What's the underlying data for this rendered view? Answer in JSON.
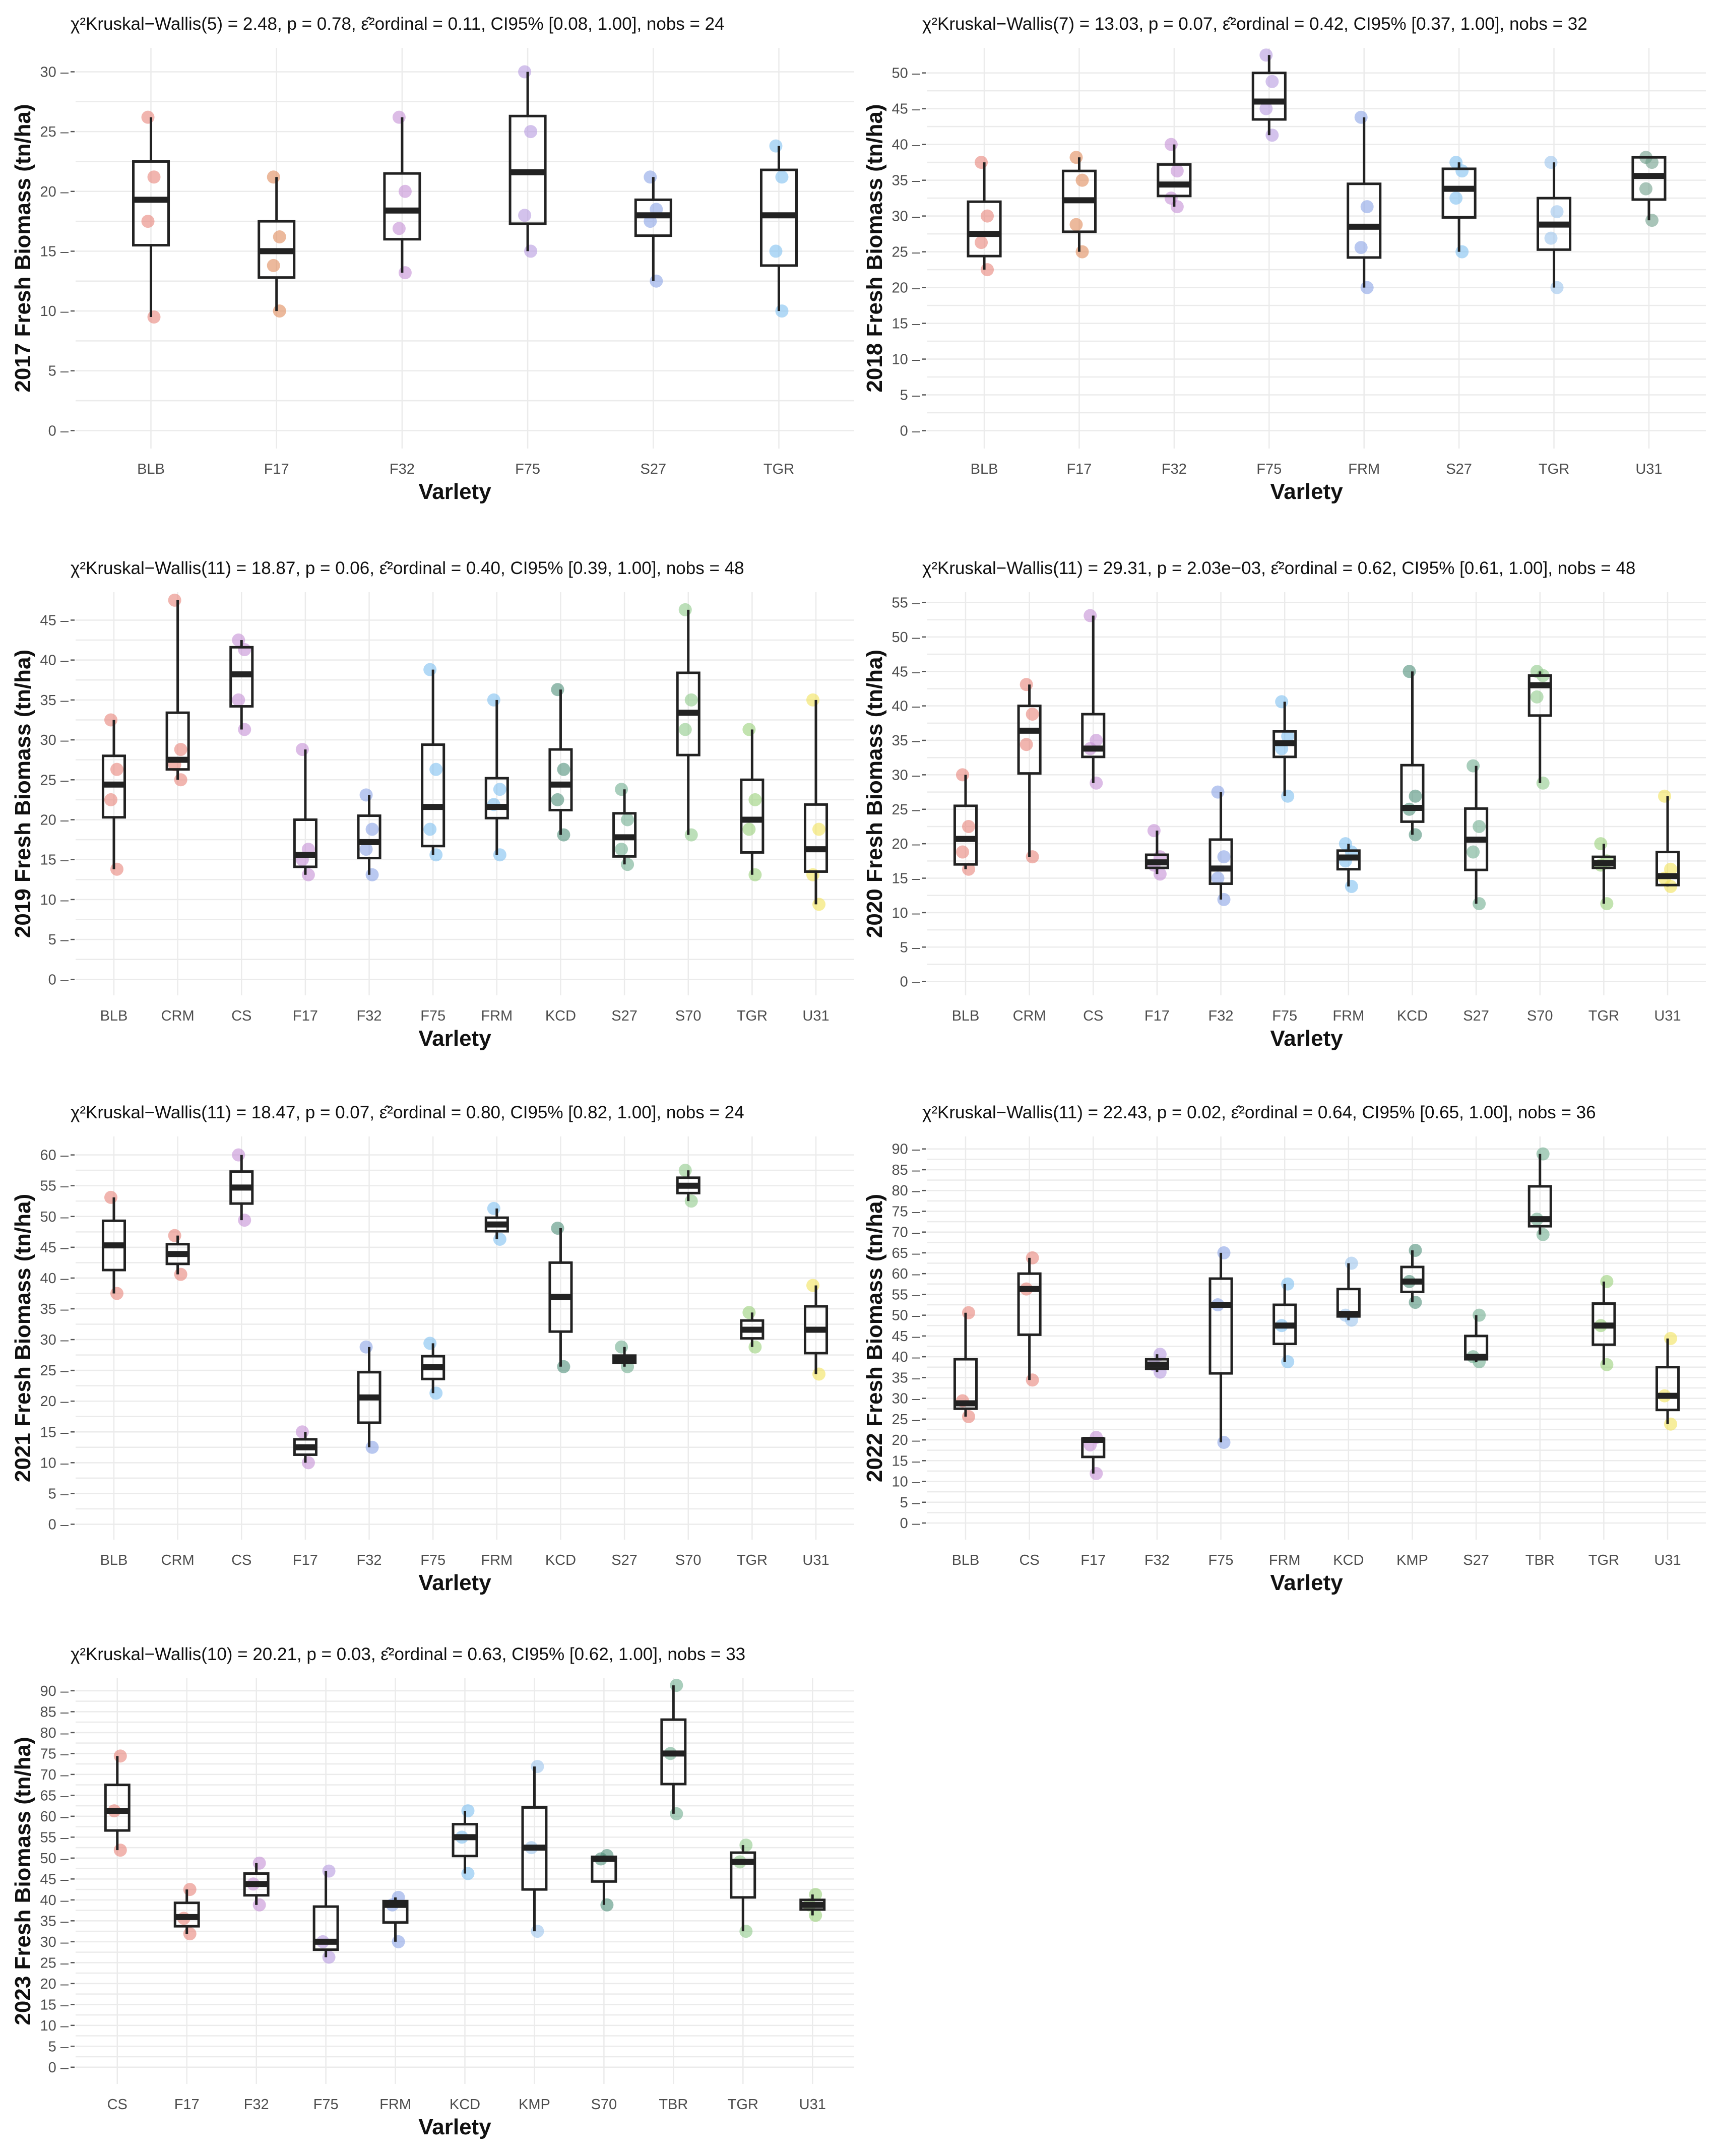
{
  "y_axis_label_suffix": "Fresh Biomass (tn/ha)",
  "x_axis_label": "Varlety",
  "colors": {
    "BLB": "#e8837a",
    "CRM": "#e8837a",
    "CS": "#c48fd6",
    "F17": "#e8837a",
    "F32": "#c48fd6",
    "F75": "#b59ae0",
    "FRM": "#9cc4ec",
    "KCD": "#7fb0a0",
    "KMP": "#9cc4ec",
    "S27": "#8aa4e6",
    "S70": "#8fc98a",
    "TBR": "#6fae8f",
    "TGR": "#9ad07a",
    "U31": "#f2e35a"
  },
  "chart_data": [
    {
      "type": "boxplot",
      "year": "2017",
      "stat": "χ²Kruskal−Wallis(5) = 2.48, p = 0.78, ε̂²ordinal = 0.11, CI95% [0.08, 1.00], nobs = 24",
      "ylabel": "2017 Fresh Biomass (tn/ha)",
      "xlabel": "Varlety",
      "ylim": [
        -1.5,
        32
      ],
      "yticks": [
        0,
        5,
        10,
        15,
        20,
        25,
        30
      ],
      "categories": [
        "BLB",
        "F17",
        "F32",
        "F75",
        "S27",
        "TGR"
      ],
      "colors": [
        "#e8837a",
        "#e08a5a",
        "#c48fd6",
        "#b59ae0",
        "#8aa4e6",
        "#7fbff0"
      ],
      "boxes": [
        [
          9.5,
          15.5,
          19.3,
          22.5,
          26.2
        ],
        [
          10,
          12.8,
          15,
          17.5,
          21.2
        ],
        [
          13.2,
          16,
          18.4,
          21.5,
          26.2
        ],
        [
          15,
          17.3,
          21.6,
          26.3,
          30
        ],
        [
          12.5,
          16.3,
          18,
          19.3,
          21.2
        ],
        [
          10,
          13.8,
          18,
          21.8,
          23.8
        ]
      ],
      "points": [
        [
          9.5,
          17.5,
          21.2,
          26.2
        ],
        [
          10,
          13.8,
          16.2,
          21.2
        ],
        [
          13.2,
          16.9,
          20,
          26.2
        ],
        [
          15,
          18,
          25,
          30
        ],
        [
          12.5,
          17.5,
          18.5,
          21.2
        ],
        [
          10,
          15,
          21.2,
          23.8
        ]
      ]
    },
    {
      "type": "boxplot",
      "year": "2018",
      "stat": "χ²Kruskal−Wallis(7) = 13.03, p = 0.07, ε̂²ordinal = 0.42, CI95% [0.37, 1.00], nobs = 32",
      "ylabel": "2018 Fresh Biomass (tn/ha)",
      "xlabel": "Varlety",
      "ylim": [
        -2.5,
        53.5
      ],
      "yticks": [
        0,
        5,
        10,
        15,
        20,
        25,
        30,
        35,
        40,
        45,
        50
      ],
      "categories": [
        "BLB",
        "F17",
        "F32",
        "F75",
        "FRM",
        "S27",
        "TGR",
        "U31"
      ],
      "colors": [
        "#e8837a",
        "#e08a5a",
        "#c48fd6",
        "#b59ae0",
        "#8aa4e6",
        "#7fbff0",
        "#9cc4ec",
        "#6f9e8a"
      ],
      "boxes": [
        [
          22.5,
          24.4,
          27.5,
          32,
          37.5
        ],
        [
          25,
          27.8,
          32.2,
          36.3,
          38.2
        ],
        [
          31.3,
          32.8,
          34.4,
          37.2,
          40
        ],
        [
          41.3,
          43.5,
          46,
          50,
          52.5
        ],
        [
          20,
          24.2,
          28.5,
          34.5,
          43.8
        ],
        [
          25,
          29.8,
          33.8,
          36.6,
          37.5
        ],
        [
          20,
          25.3,
          28.8,
          32.5,
          37.5
        ],
        [
          29.4,
          32.3,
          35.6,
          38.2,
          38.2
        ]
      ],
      "points": [
        [
          22.5,
          26.3,
          30,
          37.5
        ],
        [
          25,
          28.8,
          35,
          38.2
        ],
        [
          31.3,
          32.5,
          36.3,
          40
        ],
        [
          41.3,
          45,
          48.8,
          52.5
        ],
        [
          20,
          25.6,
          31.3,
          43.8
        ],
        [
          25,
          32.5,
          36.3,
          37.5
        ],
        [
          20,
          26.9,
          30.6,
          37.5
        ],
        [
          29.4,
          33.8,
          37.5,
          38.2
        ]
      ]
    },
    {
      "type": "boxplot",
      "year": "2019",
      "stat": "χ²Kruskal−Wallis(11) = 18.87, p = 0.06, ε̂²ordinal = 0.40, CI95% [0.39, 1.00], nobs = 48",
      "ylabel": "2019 Fresh Biomass (tn/ha)",
      "xlabel": "Varlety",
      "ylim": [
        -2,
        48.5
      ],
      "yticks": [
        0,
        5,
        10,
        15,
        20,
        25,
        30,
        35,
        40,
        45
      ],
      "categories": [
        "BLB",
        "CRM",
        "CS",
        "F17",
        "F32",
        "F75",
        "FRM",
        "KCD",
        "S27",
        "S70",
        "TGR",
        "U31"
      ],
      "colors": [
        "#e8837a",
        "#e8837a",
        "#c48fd6",
        "#c48fd6",
        "#8aa4e6",
        "#7fbff0",
        "#7fbff0",
        "#4f8f7a",
        "#6fae8f",
        "#8fc98a",
        "#9ad07a",
        "#f2e35a"
      ],
      "boxes": [
        [
          13.8,
          20.3,
          24.4,
          28,
          32.5
        ],
        [
          25,
          26.3,
          27.5,
          33.4,
          47.5
        ],
        [
          31.3,
          34.2,
          38.2,
          41.6,
          42.5
        ],
        [
          13.1,
          14.1,
          15.6,
          20,
          28.8
        ],
        [
          13.1,
          15.2,
          17.2,
          20.5,
          23.1
        ],
        [
          15.6,
          16.7,
          21.6,
          29.4,
          38.8
        ],
        [
          15.6,
          20.2,
          21.6,
          25.2,
          35
        ],
        [
          18.1,
          21.2,
          24.4,
          28.8,
          36.3
        ],
        [
          14.4,
          15.4,
          17.8,
          20.8,
          23.8
        ],
        [
          18.1,
          28.1,
          33.4,
          38.4,
          46.3
        ],
        [
          13.1,
          15.9,
          20,
          25,
          31.3
        ],
        [
          9.4,
          13.5,
          16.3,
          21.9,
          35
        ]
      ],
      "points": [
        [
          13.8,
          22.5,
          26.3,
          32.5
        ],
        [
          25,
          26.9,
          28.8,
          47.5
        ],
        [
          31.3,
          35,
          41.3,
          42.5
        ],
        [
          13.1,
          15,
          16.3,
          28.8
        ],
        [
          13.1,
          16.3,
          18.8,
          23.1
        ],
        [
          15.6,
          18.8,
          26.3,
          38.8
        ],
        [
          15.6,
          21.9,
          23.8,
          35
        ],
        [
          18.1,
          22.5,
          26.3,
          36.3
        ],
        [
          14.4,
          16.3,
          20,
          23.8
        ],
        [
          18.1,
          31.3,
          35,
          46.3
        ],
        [
          13.1,
          18.8,
          22.5,
          31.3
        ],
        [
          9.4,
          13.1,
          18.8,
          35
        ]
      ]
    },
    {
      "type": "boxplot",
      "year": "2020",
      "stat": "χ²Kruskal−Wallis(11) = 29.31, p = 2.03e−03, ε̂²ordinal = 0.62, CI95% [0.61, 1.00], nobs = 48",
      "ylabel": "2020 Fresh Biomass (tn/ha)",
      "xlabel": "Varlety",
      "ylim": [
        -2,
        56.5
      ],
      "yticks": [
        0,
        5,
        10,
        15,
        20,
        25,
        30,
        35,
        40,
        45,
        50,
        55
      ],
      "categories": [
        "BLB",
        "CRM",
        "CS",
        "F17",
        "F32",
        "F75",
        "FRM",
        "KCD",
        "S27",
        "S70",
        "TGR",
        "U31"
      ],
      "colors": [
        "#e8837a",
        "#e8837a",
        "#c48fd6",
        "#c48fd6",
        "#8aa4e6",
        "#7fbff0",
        "#7fbff0",
        "#4f8f7a",
        "#6fae8f",
        "#8fc98a",
        "#9ad07a",
        "#f2e35a"
      ],
      "boxes": [
        [
          16.3,
          17,
          20.7,
          25.5,
          30
        ],
        [
          18.1,
          30.2,
          36.4,
          40,
          43.1
        ],
        [
          28.8,
          32.6,
          33.8,
          38.8,
          53.1
        ],
        [
          15.6,
          16.5,
          17.3,
          18.4,
          21.9
        ],
        [
          11.9,
          14.2,
          16.4,
          20.6,
          27.5
        ],
        [
          26.9,
          32.6,
          34.6,
          36.3,
          40.6
        ],
        [
          13.8,
          16.3,
          18,
          19,
          20
        ],
        [
          21.3,
          23.2,
          25.2,
          31.4,
          45
        ],
        [
          11.3,
          16.2,
          20.6,
          25.1,
          31.3
        ],
        [
          28.8,
          38.6,
          43,
          44.4,
          45
        ],
        [
          11.3,
          16.5,
          17.2,
          18.1,
          20
        ],
        [
          13.8,
          14,
          15.3,
          18.8,
          26.9
        ]
      ],
      "points": [
        [
          16.3,
          18.8,
          22.5,
          30
        ],
        [
          18.1,
          34.4,
          38.8,
          43.1
        ],
        [
          28.8,
          33.8,
          35,
          53.1
        ],
        [
          15.6,
          16.9,
          18.1,
          21.9
        ],
        [
          11.9,
          15,
          18.1,
          27.5
        ],
        [
          26.9,
          33.8,
          35.6,
          40.6
        ],
        [
          13.8,
          17.5,
          18.8,
          20
        ],
        [
          21.3,
          25,
          26.9,
          45
        ],
        [
          11.3,
          18.8,
          22.5,
          31.3
        ],
        [
          28.8,
          41.3,
          44.4,
          45
        ],
        [
          11.3,
          16.9,
          17.5,
          20
        ],
        [
          13.8,
          15,
          16.3,
          26.9
        ]
      ]
    },
    {
      "type": "boxplot",
      "year": "2021",
      "stat": "χ²Kruskal−Wallis(11) = 18.47, p = 0.07, ε̂²ordinal = 0.80, CI95% [0.82, 1.00], nobs = 24",
      "ylabel": "2021 Fresh Biomass (tn/ha)",
      "xlabel": "Varlety",
      "ylim": [
        -2.5,
        63
      ],
      "yticks": [
        0,
        5,
        10,
        15,
        20,
        25,
        30,
        35,
        40,
        45,
        50,
        55,
        60
      ],
      "categories": [
        "BLB",
        "CRM",
        "CS",
        "F17",
        "F32",
        "F75",
        "FRM",
        "KCD",
        "S27",
        "S70",
        "TGR",
        "U31"
      ],
      "colors": [
        "#e8837a",
        "#e8837a",
        "#c48fd6",
        "#c48fd6",
        "#8aa4e6",
        "#7fbff0",
        "#7fbff0",
        "#4f8f7a",
        "#6fae8f",
        "#8fc98a",
        "#9ad07a",
        "#f2e35a"
      ],
      "boxes": [
        [
          37.5,
          41.3,
          45.3,
          49.3,
          53.1
        ],
        [
          40.6,
          42.3,
          43.9,
          45.5,
          46.9
        ],
        [
          49.4,
          52.1,
          54.7,
          57.3,
          60
        ],
        [
          10,
          11.3,
          12.5,
          13.8,
          15
        ],
        [
          12.5,
          16.5,
          20.6,
          24.7,
          28.8
        ],
        [
          21.3,
          23.6,
          25.5,
          27.3,
          29.4
        ],
        [
          46.3,
          47.6,
          48.7,
          49.8,
          51.3
        ],
        [
          25.6,
          31.3,
          36.9,
          42.5,
          48.1
        ],
        [
          25.6,
          26.2,
          26.8,
          27.4,
          28.8
        ],
        [
          52.5,
          53.8,
          55,
          56.3,
          57.5
        ],
        [
          28.8,
          30.2,
          31.6,
          33.1,
          34.4
        ],
        [
          24.4,
          27.8,
          31.6,
          35.4,
          38.8
        ]
      ],
      "points": [
        [
          37.5,
          53.1
        ],
        [
          40.6,
          46.9
        ],
        [
          49.4,
          60
        ],
        [
          10,
          15
        ],
        [
          12.5,
          28.8
        ],
        [
          21.3,
          29.4
        ],
        [
          46.3,
          51.3
        ],
        [
          25.6,
          48.1
        ],
        [
          25.6,
          28.8
        ],
        [
          52.5,
          57.5
        ],
        [
          28.8,
          34.4
        ],
        [
          24.4,
          38.8
        ]
      ]
    },
    {
      "type": "boxplot",
      "year": "2022",
      "stat": "χ²Kruskal−Wallis(11) = 22.43, p = 0.02, ε̂²ordinal = 0.64, CI95% [0.65, 1.00], nobs = 36",
      "ylabel": "2022 Fresh Biomass (tn/ha)",
      "xlabel": "Varlety",
      "ylim": [
        -4,
        93
      ],
      "yticks": [
        0,
        5,
        10,
        15,
        20,
        25,
        30,
        35,
        40,
        45,
        50,
        55,
        60,
        65,
        70,
        75,
        80,
        85,
        90
      ],
      "categories": [
        "BLB",
        "CS",
        "F17",
        "F32",
        "F75",
        "FRM",
        "KCD",
        "KMP",
        "S27",
        "TBR",
        "TGR",
        "U31"
      ],
      "colors": [
        "#e8837a",
        "#e8837a",
        "#c48fd6",
        "#b59ae0",
        "#8aa4e6",
        "#7fbff0",
        "#9cc4ec",
        "#4f8f7a",
        "#6fae8f",
        "#6fae8f",
        "#9ad07a",
        "#f2e35a"
      ],
      "boxes": [
        [
          25.6,
          27.5,
          28.8,
          39.4,
          50.6
        ],
        [
          34.4,
          45.3,
          56.3,
          60,
          63.8
        ],
        [
          11.9,
          15.9,
          20,
          20.3,
          20.6
        ],
        [
          36.3,
          37.1,
          38.1,
          39.4,
          40.6
        ],
        [
          19.4,
          36,
          52.5,
          58.8,
          65
        ],
        [
          38.8,
          43.1,
          47.5,
          52.5,
          57.5
        ],
        [
          48.8,
          49.7,
          50.3,
          56.3,
          62.5
        ],
        [
          53.1,
          55.6,
          58.1,
          61.6,
          65.6
        ],
        [
          38.8,
          39.4,
          40,
          45,
          50
        ],
        [
          69.4,
          71.4,
          73.1,
          81,
          88.8
        ],
        [
          38.1,
          42.9,
          47.5,
          52.8,
          58.1
        ],
        [
          23.8,
          27.2,
          30.6,
          37.5,
          44.4
        ]
      ],
      "points": [
        [
          25.6,
          29.4,
          50.6
        ],
        [
          34.4,
          56.3,
          63.8
        ],
        [
          11.9,
          18.8,
          20.6
        ],
        [
          36.3,
          38.1,
          40.6
        ],
        [
          19.4,
          52.5,
          65
        ],
        [
          38.8,
          47.5,
          57.5
        ],
        [
          48.8,
          50,
          62.5
        ],
        [
          53.1,
          58.1,
          65.6
        ],
        [
          38.8,
          40,
          50
        ],
        [
          69.4,
          73.1,
          88.8
        ],
        [
          38.1,
          47.5,
          58.1
        ],
        [
          23.8,
          30.6,
          44.4
        ]
      ]
    },
    {
      "type": "boxplot",
      "year": "2023",
      "stat": "χ²Kruskal−Wallis(10) = 20.21, p = 0.03, ε̂²ordinal = 0.63, CI95% [0.62, 1.00], nobs = 33",
      "ylabel": "2023 Fresh Biomass (tn/ha)",
      "xlabel": "Varlety",
      "ylim": [
        -4,
        93
      ],
      "yticks": [
        0,
        5,
        10,
        15,
        20,
        25,
        30,
        35,
        40,
        45,
        50,
        55,
        60,
        65,
        70,
        75,
        80,
        85,
        90
      ],
      "categories": [
        "CS",
        "F17",
        "F32",
        "F75",
        "FRM",
        "KCD",
        "KMP",
        "S70",
        "TBR",
        "TGR",
        "U31"
      ],
      "colors": [
        "#e8837a",
        "#e8837a",
        "#c48fd6",
        "#b59ae0",
        "#8aa4e6",
        "#7fbff0",
        "#9cc4ec",
        "#4f8f7a",
        "#6fae8f",
        "#8fc98a",
        "#9ad07a"
      ],
      "boxes": [
        [
          51.9,
          56.6,
          61.3,
          67.5,
          74.4
        ],
        [
          31.9,
          33.7,
          35.9,
          39.3,
          42.5
        ],
        [
          38.8,
          41.1,
          43.8,
          46.3,
          48.8
        ],
        [
          26.3,
          28.1,
          30,
          38.4,
          46.9
        ],
        [
          30,
          34.6,
          38.8,
          39.7,
          40.6
        ],
        [
          46.3,
          50.5,
          55,
          58.1,
          61.3
        ],
        [
          32.5,
          42.5,
          52.5,
          62.1,
          71.9
        ],
        [
          38.8,
          44.4,
          49.8,
          50.3,
          50.6
        ],
        [
          60.6,
          67.7,
          75,
          83.1,
          91.3
        ],
        [
          32.5,
          40.6,
          49.1,
          51.3,
          53.1
        ],
        [
          36.3,
          37.7,
          38.8,
          40,
          41.3
        ]
      ],
      "points": [
        [
          51.9,
          61.3,
          74.4
        ],
        [
          31.9,
          35.6,
          42.5
        ],
        [
          38.8,
          43.8,
          48.8
        ],
        [
          26.3,
          30,
          46.9
        ],
        [
          30,
          38.8,
          40.6
        ],
        [
          46.3,
          55,
          61.3
        ],
        [
          32.5,
          52.5,
          71.9
        ],
        [
          38.8,
          49.8,
          50.6
        ],
        [
          60.6,
          75,
          91.3
        ],
        [
          32.5,
          49.1,
          53.1
        ],
        [
          36.3,
          38.8,
          41.3
        ]
      ]
    }
  ]
}
